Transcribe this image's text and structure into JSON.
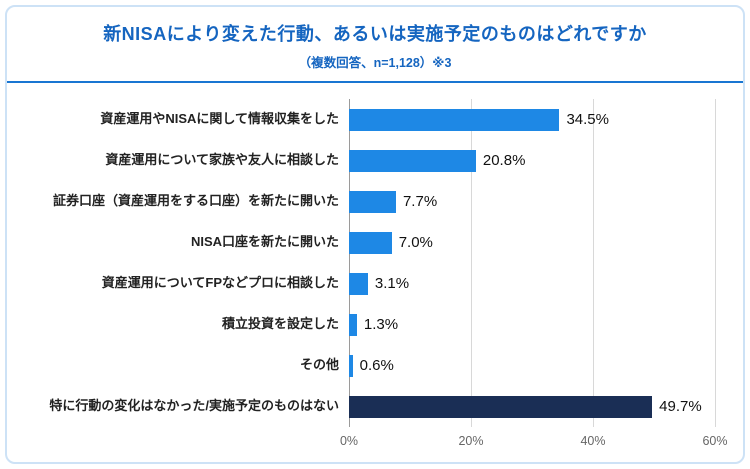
{
  "header": {
    "title": "新NISAにより変えた行動、あるいは実施予定のものはどれですか",
    "subtitle": "（複数回答、n=1,128）※3"
  },
  "chart_data": {
    "type": "bar",
    "orientation": "horizontal",
    "title": "新NISAにより変えた行動、あるいは実施予定のものはどれですか",
    "subtitle": "（複数回答、n=1,128）※3",
    "categories": [
      "資産運用やNISAに関して情報収集をした",
      "資産運用について家族や友人に相談した",
      "証券口座（資産運用をする口座）を新たに開いた",
      "NISA口座を新たに開いた",
      "資産運用についてFPなどプロに相談した",
      "積立投資を設定した",
      "その他",
      "特に行動の変化はなかった/実施予定のものはない"
    ],
    "values": [
      34.5,
      20.8,
      7.7,
      7.0,
      3.1,
      1.3,
      0.6,
      49.7
    ],
    "value_labels": [
      "34.5%",
      "20.8%",
      "7.7%",
      "7.0%",
      "3.1%",
      "1.3%",
      "0.6%",
      "49.7%"
    ],
    "xlim": [
      0,
      60
    ],
    "x_tick_values": [
      0,
      20,
      40,
      60
    ],
    "x_tick_labels": [
      "0%",
      "20%",
      "40%",
      "60%"
    ],
    "grid": true,
    "colors": {
      "bar_default": "#1e88e5",
      "bar_highlight": "#1a2e55",
      "title_blue": "#1565c0",
      "divider_blue": "#1976d2",
      "card_border": "#cde2f6"
    },
    "bar_colors": [
      "#1e88e5",
      "#1e88e5",
      "#1e88e5",
      "#1e88e5",
      "#1e88e5",
      "#1e88e5",
      "#1e88e5",
      "#1a2e55"
    ]
  }
}
